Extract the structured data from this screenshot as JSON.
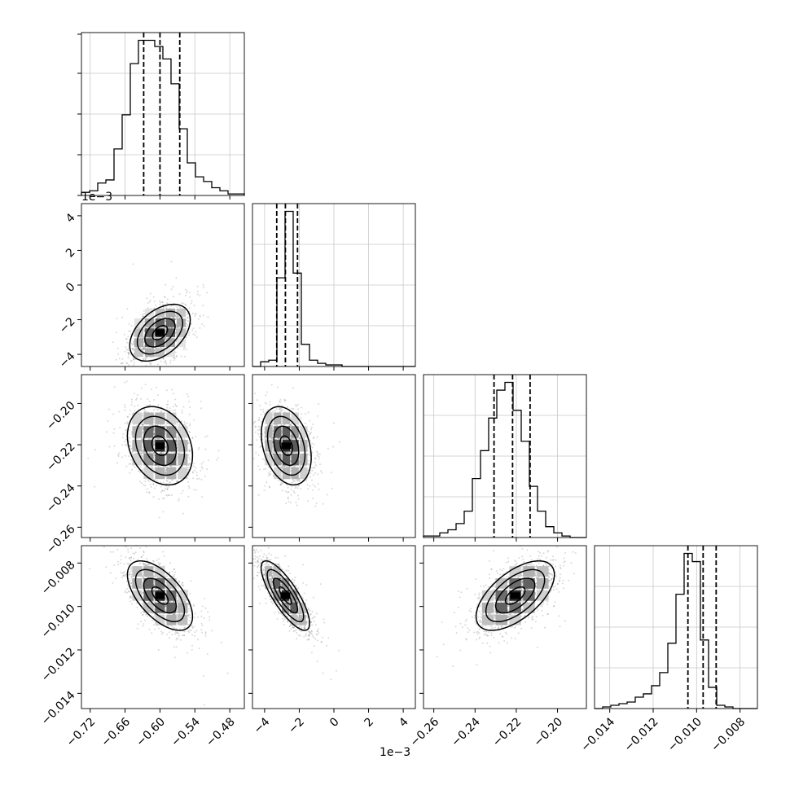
{
  "chart_data": {
    "type": "corner",
    "offset_label": "1e−3",
    "params": [
      {
        "range": [
          -0.735,
          -0.455
        ],
        "ticks": [
          -0.72,
          -0.66,
          -0.6,
          -0.54,
          -0.48
        ],
        "tick_labels": [
          "−0.72",
          "−0.66",
          "−0.60",
          "−0.54",
          "−0.48"
        ],
        "quantiles": [
          -0.628,
          -0.6,
          -0.566
        ],
        "hist_counts": [
          2,
          3,
          8,
          10,
          30,
          52,
          85,
          100,
          100,
          96,
          88,
          72,
          43,
          21,
          12,
          9,
          5,
          3,
          1,
          1
        ]
      },
      {
        "range": [
          -4.7,
          4.7
        ],
        "ticks": [
          -4,
          -2,
          0,
          2,
          4
        ],
        "tick_labels": [
          "−4",
          "−2",
          "0",
          "2",
          "4"
        ],
        "quantiles": [
          -3.3,
          -2.8,
          -2.1
        ],
        "hist_counts": [
          0,
          3,
          4,
          56,
          98,
          59,
          14,
          4,
          2,
          1,
          1,
          0,
          0,
          0,
          0,
          0,
          0,
          0,
          0,
          0
        ]
      },
      {
        "range": [
          -0.265,
          -0.186
        ],
        "ticks": [
          -0.26,
          -0.24,
          -0.22,
          -0.2
        ],
        "tick_labels": [
          "−0.26",
          "−0.24",
          "−0.22",
          "−0.20"
        ],
        "quantiles": [
          -0.2308,
          -0.2218,
          -0.2133
        ],
        "hist_counts": [
          1,
          1,
          3,
          5,
          9,
          17,
          38,
          56,
          77,
          95,
          100,
          82,
          62,
          33,
          17,
          7,
          3,
          1,
          0,
          0
        ]
      },
      {
        "range": [
          -0.0147,
          -0.0072
        ],
        "ticks": [
          -0.014,
          -0.012,
          -0.01,
          -0.008
        ],
        "tick_labels": [
          "−0.014",
          "−0.012",
          "−0.010",
          "−0.008"
        ],
        "quantiles": [
          -0.0104,
          -0.0097,
          -0.0091
        ],
        "hist_counts": [
          0,
          1,
          2,
          3,
          4,
          7,
          9,
          14,
          22,
          40,
          70,
          95,
          90,
          42,
          13,
          2,
          1,
          0,
          0,
          0
        ]
      }
    ],
    "pairs": [
      {
        "x": 0,
        "y": 1,
        "center": [
          -0.6,
          -2.75
        ],
        "sd": [
          0.026,
          0.82
        ],
        "rho": 0.45
      },
      {
        "x": 0,
        "y": 2,
        "center": [
          -0.6,
          -0.2205
        ],
        "sd": [
          0.028,
          0.0095
        ],
        "rho": -0.25
      },
      {
        "x": 1,
        "y": 2,
        "center": [
          -2.75,
          -0.2205
        ],
        "sd": [
          0.72,
          0.0095
        ],
        "rho": -0.3
      },
      {
        "x": 0,
        "y": 3,
        "center": [
          -0.6,
          -0.0095
        ],
        "sd": [
          0.028,
          0.0008
        ],
        "rho": -0.6
      },
      {
        "x": 1,
        "y": 3,
        "center": [
          -2.8,
          -0.0095
        ],
        "sd": [
          0.7,
          0.0008
        ],
        "rho": -0.8
      },
      {
        "x": 2,
        "y": 3,
        "center": [
          -0.2205,
          -0.0095
        ],
        "sd": [
          0.0095,
          0.0008
        ],
        "rho": 0.6
      }
    ],
    "grid": true,
    "contour_levels": [
      0.5,
      1.0,
      1.5,
      2.0
    ]
  }
}
